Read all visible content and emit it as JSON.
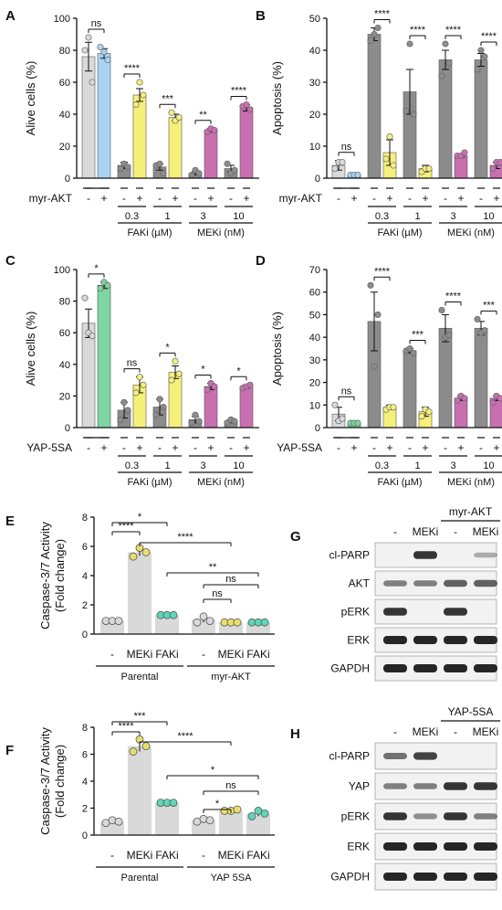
{
  "chart_data": [
    {
      "panel": "A",
      "type": "bar",
      "ylabel": "Alive cells (%)",
      "ylim": [
        0,
        100
      ],
      "yticks": [
        0,
        20,
        40,
        60,
        80,
        100
      ],
      "treatment_label": "myr-AKT",
      "signs": [
        "-",
        "+",
        "-",
        "+",
        "-",
        "+",
        "-",
        "+",
        "-",
        "+"
      ],
      "groups": [
        {
          "dose": "0.3",
          "drug": "FAKi (µM)"
        },
        {
          "dose": "1",
          "drug": "FAKi (µM)"
        },
        {
          "dose": "3",
          "drug": "MEKi (nM)"
        },
        {
          "dose": "10",
          "drug": "MEKi (nM)"
        }
      ],
      "drug_labels": [
        "FAKi (µM)",
        "MEKi (nM)"
      ],
      "bar_colors": [
        "#d9d9d9",
        "#a9d3f2",
        "#8c8c8c",
        "#f5f07a",
        "#8c8c8c",
        "#f5f07a",
        "#8c8c8c",
        "#c86fb0",
        "#8c8c8c",
        "#c86fb0"
      ],
      "values": [
        76,
        78,
        8,
        52,
        7,
        38,
        3,
        30,
        6,
        44
      ],
      "errors": [
        9,
        3,
        2,
        4,
        2,
        2,
        1,
        1,
        2,
        2
      ],
      "points": [
        [
          80,
          88,
          60
        ],
        [
          82,
          79,
          74
        ],
        [
          6,
          9,
          7
        ],
        [
          46,
          60,
          52
        ],
        [
          8,
          9,
          3
        ],
        [
          41,
          36,
          38
        ],
        [
          2,
          5,
          3
        ],
        [
          29,
          31,
          30
        ],
        [
          9,
          3,
          5
        ],
        [
          45,
          46,
          43
        ]
      ],
      "significance": [
        {
          "pair": [
            0,
            1
          ],
          "label": "ns"
        },
        {
          "pair": [
            2,
            3
          ],
          "label": "****"
        },
        {
          "pair": [
            4,
            5
          ],
          "label": "***"
        },
        {
          "pair": [
            6,
            7
          ],
          "label": "**"
        },
        {
          "pair": [
            8,
            9
          ],
          "label": "****"
        }
      ]
    },
    {
      "panel": "B",
      "type": "bar",
      "ylabel": "Apoptosis (%)",
      "ylim": [
        0,
        50
      ],
      "yticks": [
        0,
        10,
        20,
        30,
        40,
        50
      ],
      "treatment_label": "myr-AKT",
      "signs": [
        "-",
        "+",
        "-",
        "+",
        "-",
        "+",
        "-",
        "+",
        "-",
        "+"
      ],
      "groups": [
        {
          "dose": "0.3",
          "drug": "FAKi (µM)"
        },
        {
          "dose": "1",
          "drug": "FAKi (µM)"
        },
        {
          "dose": "3",
          "drug": "MEKi (nM)"
        },
        {
          "dose": "10",
          "drug": "MEKi (nM)"
        }
      ],
      "drug_labels": [
        "FAKi (µM)",
        "MEKi (nM)"
      ],
      "bar_colors": [
        "#d9d9d9",
        "#a9d3f2",
        "#8c8c8c",
        "#f5f07a",
        "#8c8c8c",
        "#f5f07a",
        "#8c8c8c",
        "#c86fb0",
        "#8c8c8c",
        "#c86fb0"
      ],
      "values": [
        4,
        1,
        45,
        8,
        27,
        3,
        37,
        7,
        37,
        4
      ],
      "errors": [
        1.5,
        0.4,
        2,
        4,
        7,
        1,
        3,
        0.5,
        2,
        1
      ],
      "points": [
        [
          3,
          5,
          5
        ],
        [
          1,
          1,
          1
        ],
        [
          43,
          45,
          47
        ],
        [
          6,
          13,
          4
        ],
        [
          21,
          42,
          20
        ],
        [
          2,
          3,
          3
        ],
        [
          32,
          42,
          36
        ],
        [
          7,
          7,
          8
        ],
        [
          34,
          40,
          38
        ],
        [
          3,
          5,
          5
        ]
      ],
      "significance": [
        {
          "pair": [
            0,
            1
          ],
          "label": "ns"
        },
        {
          "pair": [
            2,
            3
          ],
          "label": "****"
        },
        {
          "pair": [
            4,
            5
          ],
          "label": "****"
        },
        {
          "pair": [
            6,
            7
          ],
          "label": "****"
        },
        {
          "pair": [
            8,
            9
          ],
          "label": "****"
        }
      ]
    },
    {
      "panel": "C",
      "type": "bar",
      "ylabel": "Alive cells (%)",
      "ylim": [
        0,
        100
      ],
      "yticks": [
        0,
        20,
        40,
        60,
        80,
        100
      ],
      "treatment_label": "YAP-5SA",
      "signs": [
        "-",
        "+",
        "-",
        "+",
        "-",
        "+",
        "-",
        "+",
        "-",
        "+"
      ],
      "groups": [
        {
          "dose": "0.3",
          "drug": "FAKi (µM)"
        },
        {
          "dose": "1",
          "drug": "FAKi (µM)"
        },
        {
          "dose": "3",
          "drug": "MEKi (nM)"
        },
        {
          "dose": "10",
          "drug": "MEKi (nM)"
        }
      ],
      "drug_labels": [
        "FAKi (µM)",
        "MEKi (nM)"
      ],
      "bar_colors": [
        "#d9d9d9",
        "#7fd6a3",
        "#8c8c8c",
        "#f5f07a",
        "#8c8c8c",
        "#f5f07a",
        "#8c8c8c",
        "#c86fb0",
        "#8c8c8c",
        "#c86fb0"
      ],
      "values": [
        66,
        90,
        11,
        27,
        13,
        35,
        5,
        26,
        4,
        26
      ],
      "errors": [
        9,
        2,
        5,
        5,
        5,
        4,
        2,
        2,
        1,
        1
      ],
      "points": [
        [
          82,
          60,
          58
        ],
        [
          88,
          92,
          90
        ],
        [
          5,
          16,
          11
        ],
        [
          22,
          32,
          27
        ],
        [
          8,
          18,
          13
        ],
        [
          30,
          42,
          34
        ],
        [
          3,
          8,
          4
        ],
        [
          24,
          28,
          26
        ],
        [
          3,
          5,
          4
        ],
        [
          25,
          26,
          27
        ]
      ],
      "significance": [
        {
          "pair": [
            0,
            1
          ],
          "label": "*"
        },
        {
          "pair": [
            2,
            3
          ],
          "label": "ns"
        },
        {
          "pair": [
            4,
            5
          ],
          "label": "*"
        },
        {
          "pair": [
            6,
            7
          ],
          "label": "*"
        },
        {
          "pair": [
            8,
            9
          ],
          "label": "*"
        }
      ]
    },
    {
      "panel": "D",
      "type": "bar",
      "ylabel": "Apoptosis (%)",
      "ylim": [
        0,
        70
      ],
      "yticks": [
        0,
        10,
        20,
        30,
        40,
        50,
        60,
        70
      ],
      "treatment_label": "YAP-5SA",
      "signs": [
        "-",
        "+",
        "-",
        "+",
        "-",
        "+",
        "-",
        "+",
        "-",
        "+"
      ],
      "groups": [
        {
          "dose": "0.3",
          "drug": "FAKi (µM)"
        },
        {
          "dose": "1",
          "drug": "FAKi (µM)"
        },
        {
          "dose": "3",
          "drug": "MEKi (nM)"
        },
        {
          "dose": "10",
          "drug": "MEKi (nM)"
        }
      ],
      "drug_labels": [
        "FAKi (µM)",
        "MEKi (nM)"
      ],
      "bar_colors": [
        "#d9d9d9",
        "#7fd6a3",
        "#8c8c8c",
        "#f5f07a",
        "#8c8c8c",
        "#f5f07a",
        "#8c8c8c",
        "#c86fb0",
        "#8c8c8c",
        "#c86fb0"
      ],
      "values": [
        6,
        2,
        47,
        9,
        34,
        7,
        44,
        13,
        44,
        13
      ],
      "errors": [
        3,
        0.5,
        13,
        1,
        1,
        2,
        6,
        1,
        3,
        1
      ],
      "points": [
        [
          10,
          3,
          4
        ],
        [
          2,
          2,
          2
        ],
        [
          63,
          27,
          50
        ],
        [
          8,
          9,
          9
        ],
        [
          34,
          35,
          33
        ],
        [
          5,
          8,
          7
        ],
        [
          52,
          40,
          41
        ],
        [
          12,
          14,
          13
        ],
        [
          48,
          42,
          43
        ],
        [
          11,
          14,
          13
        ]
      ],
      "significance": [
        {
          "pair": [
            0,
            1
          ],
          "label": "ns"
        },
        {
          "pair": [
            2,
            3
          ],
          "label": "****"
        },
        {
          "pair": [
            4,
            5
          ],
          "label": "***"
        },
        {
          "pair": [
            6,
            7
          ],
          "label": "****"
        },
        {
          "pair": [
            8,
            9
          ],
          "label": "***"
        }
      ]
    },
    {
      "panel": "E",
      "type": "bar",
      "ylabel_lines": [
        "Caspase-3/7 Activity",
        "(Fold change)"
      ],
      "ylim": [
        0,
        8
      ],
      "yticks": [
        0,
        2,
        4,
        6,
        8
      ],
      "categories": [
        "-",
        "MEKi",
        "FAKi",
        "-",
        "MEKi",
        "FAKi"
      ],
      "group_labels": [
        "Parental",
        "myr-AKT"
      ],
      "values": [
        0.9,
        5.6,
        1.3,
        1.0,
        0.8,
        0.8
      ],
      "errors": [
        0.05,
        0.25,
        0.05,
        0.2,
        0.05,
        0.05
      ],
      "bar_color": "#d9d9d9",
      "point_colors": [
        "#d9d9d9",
        "#e8df6a",
        "#5fd6b8",
        "#d9d9d9",
        "#e8df6a",
        "#5fd6b8"
      ],
      "points": [
        [
          0.9,
          0.9,
          0.9
        ],
        [
          5.3,
          5.9,
          5.6
        ],
        [
          1.3,
          1.3,
          1.3
        ],
        [
          0.8,
          1.2,
          0.9
        ],
        [
          0.8,
          0.8,
          0.8
        ],
        [
          0.8,
          0.8,
          0.8
        ]
      ],
      "significance": [
        {
          "pair": [
            0,
            2
          ],
          "label": "*"
        },
        {
          "pair": [
            0,
            1
          ],
          "label": "****"
        },
        {
          "pair": [
            1,
            4
          ],
          "label": "****"
        },
        {
          "pair": [
            2,
            5
          ],
          "label": "**"
        },
        {
          "pair": [
            3,
            5
          ],
          "label": "ns"
        },
        {
          "pair": [
            3,
            4
          ],
          "label": "ns"
        }
      ]
    },
    {
      "panel": "F",
      "type": "bar",
      "ylabel_lines": [
        "Caspase-3/7 Activity",
        "(Fold change)"
      ],
      "ylim": [
        0,
        8
      ],
      "yticks": [
        0,
        2,
        4,
        6,
        8
      ],
      "categories": [
        "-",
        "MEKi",
        "FAKi",
        "-",
        "MEKi",
        "FAKi"
      ],
      "group_labels": [
        "Parental",
        "YAP 5SA"
      ],
      "values": [
        1.0,
        6.6,
        2.4,
        1.1,
        1.8,
        1.6
      ],
      "errors": [
        0.1,
        0.4,
        0.05,
        0.1,
        0.1,
        0.2
      ],
      "bar_color": "#d9d9d9",
      "point_colors": [
        "#d9d9d9",
        "#e8df6a",
        "#5fd6b8",
        "#d9d9d9",
        "#e8df6a",
        "#5fd6b8"
      ],
      "points": [
        [
          0.9,
          1.1,
          1.0
        ],
        [
          6.2,
          7.1,
          6.6
        ],
        [
          2.4,
          2.4,
          2.4
        ],
        [
          1.0,
          1.2,
          1.1
        ],
        [
          1.8,
          1.8,
          1.9
        ],
        [
          1.4,
          1.8,
          1.6
        ]
      ],
      "significance": [
        {
          "pair": [
            0,
            2
          ],
          "label": "***"
        },
        {
          "pair": [
            0,
            1
          ],
          "label": "****"
        },
        {
          "pair": [
            1,
            4
          ],
          "label": "****"
        },
        {
          "pair": [
            2,
            5
          ],
          "label": "*"
        },
        {
          "pair": [
            3,
            5
          ],
          "label": "ns"
        },
        {
          "pair": [
            3,
            4
          ],
          "label": "*"
        }
      ]
    },
    {
      "panel": "G",
      "type": "western-blot",
      "header": "myr-AKT",
      "lane_labels": [
        "-",
        "MEKi",
        "-",
        "MEKi"
      ],
      "rows": [
        {
          "label": "cl-PARP",
          "intensities": [
            0,
            0.9,
            0,
            0.1
          ]
        },
        {
          "label": "AKT",
          "intensities": [
            0.4,
            0.4,
            0.6,
            0.6
          ]
        },
        {
          "label": "pERK",
          "intensities": [
            0.9,
            0,
            0.9,
            0
          ]
        },
        {
          "label": "ERK",
          "intensities": [
            1,
            1,
            1,
            1
          ]
        },
        {
          "label": "GAPDH",
          "intensities": [
            1,
            1,
            1,
            1
          ]
        }
      ]
    },
    {
      "panel": "H",
      "type": "western-blot",
      "header": "YAP-5SA",
      "lane_labels": [
        "-",
        "MEKi",
        "-",
        "MEKi"
      ],
      "rows": [
        {
          "label": "cl-PARP",
          "intensities": [
            0.5,
            0.8,
            0,
            0
          ]
        },
        {
          "label": "YAP",
          "intensities": [
            0.4,
            0.4,
            0.9,
            0.9
          ]
        },
        {
          "label": "pERK",
          "intensities": [
            0.9,
            0.3,
            0.9,
            0.4
          ]
        },
        {
          "label": "ERK",
          "intensities": [
            1,
            1,
            1,
            1
          ]
        },
        {
          "label": "GAPDH",
          "intensities": [
            1,
            1,
            1,
            1
          ]
        }
      ]
    }
  ]
}
